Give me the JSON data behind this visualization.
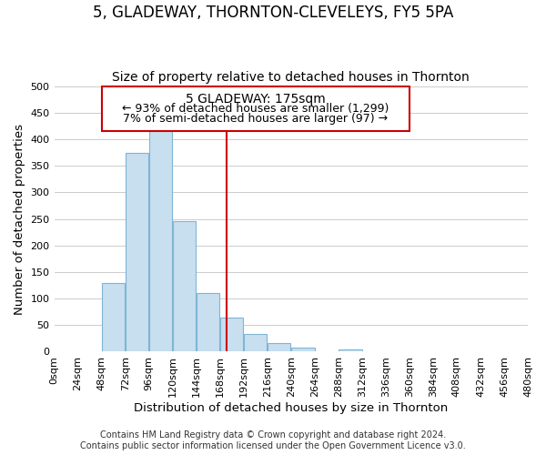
{
  "title": "5, GLADEWAY, THORNTON-CLEVELEYS, FY5 5PA",
  "subtitle": "Size of property relative to detached houses in Thornton",
  "xlabel": "Distribution of detached houses by size in Thornton",
  "ylabel": "Number of detached properties",
  "footer_line1": "Contains HM Land Registry data © Crown copyright and database right 2024.",
  "footer_line2": "Contains public sector information licensed under the Open Government Licence v3.0.",
  "bin_edges": [
    0,
    24,
    48,
    72,
    96,
    120,
    144,
    168,
    192,
    216,
    240,
    264,
    288,
    312,
    336,
    360,
    384,
    408,
    432,
    456,
    480
  ],
  "bar_heights": [
    0,
    0,
    130,
    375,
    415,
    245,
    110,
    65,
    33,
    17,
    7,
    0,
    5,
    0,
    0,
    0,
    0,
    0,
    0,
    0
  ],
  "bar_color": "#c8dff0",
  "bar_edgecolor": "#7fb5d5",
  "vline_x": 175,
  "vline_color": "#cc0000",
  "ann_title": "5 GLADEWAY: 175sqm",
  "ann_line2": "← 93% of detached houses are smaller (1,299)",
  "ann_line3": "7% of semi-detached houses are larger (97) →",
  "ylim": [
    0,
    500
  ],
  "yticks": [
    0,
    50,
    100,
    150,
    200,
    250,
    300,
    350,
    400,
    450,
    500
  ],
  "xtick_labels": [
    "0sqm",
    "24sqm",
    "48sqm",
    "72sqm",
    "96sqm",
    "120sqm",
    "144sqm",
    "168sqm",
    "192sqm",
    "216sqm",
    "240sqm",
    "264sqm",
    "288sqm",
    "312sqm",
    "336sqm",
    "360sqm",
    "384sqm",
    "408sqm",
    "432sqm",
    "456sqm",
    "480sqm"
  ],
  "grid_color": "#cccccc",
  "background_color": "#ffffff",
  "title_fontsize": 12,
  "subtitle_fontsize": 10,
  "axis_label_fontsize": 9.5,
  "tick_fontsize": 8,
  "ann_title_fontsize": 10,
  "ann_body_fontsize": 9,
  "footer_fontsize": 7
}
